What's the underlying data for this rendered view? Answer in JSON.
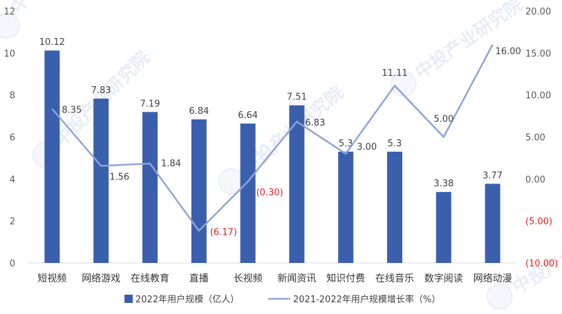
{
  "chart_data": {
    "type": "bar",
    "categories": [
      "短视频",
      "网络游戏",
      "在线教育",
      "直播",
      "长视频",
      "新闻资讯",
      "知识付费",
      "在线音乐",
      "数字阅读",
      "网络动漫"
    ],
    "series": [
      {
        "name": "2022年用户规模（亿人）",
        "type": "bar",
        "axis": "left",
        "values": [
          10.12,
          7.83,
          7.19,
          6.84,
          6.64,
          7.51,
          5.3,
          5.3,
          3.38,
          3.77
        ],
        "labels": [
          "10.12",
          "7.83",
          "7.19",
          "6.84",
          "6.64",
          "7.51",
          "5.3",
          "5.3",
          "3.38",
          "3.77"
        ]
      },
      {
        "name": "2021-2022年用户规模增长率（%）",
        "type": "line",
        "axis": "right",
        "values": [
          8.35,
          1.56,
          1.84,
          -6.17,
          -0.3,
          6.83,
          3.0,
          11.11,
          5.0,
          16.0
        ],
        "labels": [
          "8.35",
          "1.56",
          "1.84",
          "(6.17)",
          "(0.30)",
          "6.83",
          "3.00",
          "11.11",
          "5.00",
          "16.00"
        ]
      }
    ],
    "y_left": {
      "min": 0,
      "max": 12,
      "ticks": [
        "0",
        "2",
        "4",
        "6",
        "8",
        "10",
        "12"
      ]
    },
    "y_right": {
      "min": -10,
      "max": 20,
      "ticks": [
        "(10.00)",
        "(5.00)",
        "0.00",
        "5.00",
        "10.00",
        "15.00",
        "20.00"
      ]
    },
    "legend_position": "bottom",
    "grid": false,
    "colors": {
      "bar": "#3a5fad",
      "line": "#8fa4d4",
      "negative": "#e02020",
      "text": "#404040"
    }
  },
  "watermark": "中投产业研究院"
}
